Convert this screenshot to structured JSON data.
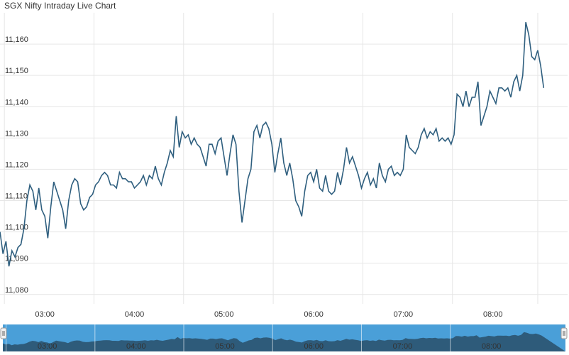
{
  "header": {
    "title": "SGX Nifty Intraday Live Chart"
  },
  "colors": {
    "line": "#2f5f7f",
    "grid": "#e6e6e6",
    "navigator_bg": "#4a9fd8",
    "navigator_area": "#2e5b7a"
  },
  "chart_data": {
    "type": "line",
    "title": "SGX Nifty Intraday Live Chart",
    "xlabel": "",
    "ylabel": "",
    "x_ticks": [
      "03:00",
      "04:00",
      "05:00",
      "06:00",
      "07:00",
      "08:00"
    ],
    "y_ticks": [
      "11,080",
      "11,090",
      "11,100",
      "11,110",
      "11,120",
      "11,130",
      "11,140",
      "11,150",
      "11,160"
    ],
    "y_values": [
      11080,
      11090,
      11100,
      11110,
      11120,
      11130,
      11140,
      11150,
      11160
    ],
    "ylim": [
      11077,
      11170
    ],
    "xlim": [
      "02:30",
      "08:50"
    ],
    "grid": true,
    "navigator_ticks": [
      "03:00",
      "04:00",
      "05:00",
      "06:00",
      "07:00",
      "08:00"
    ],
    "series": [
      {
        "values": [
          [
            "02:30",
            11100
          ],
          [
            "02:32",
            11093
          ],
          [
            "02:34",
            11097
          ],
          [
            "02:36",
            11089
          ],
          [
            "02:38",
            11094
          ],
          [
            "02:40",
            11092
          ],
          [
            "02:42",
            11095
          ],
          [
            "02:44",
            11096
          ],
          [
            "02:46",
            11101
          ],
          [
            "02:48",
            11110
          ],
          [
            "02:50",
            11115
          ],
          [
            "02:52",
            11113
          ],
          [
            "02:54",
            11107
          ],
          [
            "02:56",
            11114
          ],
          [
            "02:58",
            11107
          ],
          [
            "03:00",
            11105
          ],
          [
            "03:02",
            11098
          ],
          [
            "03:04",
            11108
          ],
          [
            "03:06",
            11116
          ],
          [
            "03:08",
            11113
          ],
          [
            "03:10",
            11110
          ],
          [
            "03:12",
            11107
          ],
          [
            "03:14",
            11101
          ],
          [
            "03:16",
            11110
          ],
          [
            "03:18",
            11115
          ],
          [
            "03:20",
            11117
          ],
          [
            "03:22",
            11116
          ],
          [
            "03:24",
            11109
          ],
          [
            "03:26",
            11107
          ],
          [
            "03:28",
            11108
          ],
          [
            "03:30",
            11111
          ],
          [
            "03:32",
            11112
          ],
          [
            "03:34",
            11115
          ],
          [
            "03:36",
            11116
          ],
          [
            "03:38",
            11118
          ],
          [
            "03:40",
            11119
          ],
          [
            "03:42",
            11118
          ],
          [
            "03:44",
            11115
          ],
          [
            "03:46",
            11115
          ],
          [
            "03:48",
            11114
          ],
          [
            "03:50",
            11119
          ],
          [
            "03:52",
            11117
          ],
          [
            "03:54",
            11117
          ],
          [
            "03:56",
            11116
          ],
          [
            "03:58",
            11116
          ],
          [
            "04:00",
            11114
          ],
          [
            "04:02",
            11115
          ],
          [
            "04:04",
            11116
          ],
          [
            "04:06",
            11118
          ],
          [
            "04:08",
            11115
          ],
          [
            "04:10",
            11118
          ],
          [
            "04:12",
            11117
          ],
          [
            "04:14",
            11121
          ],
          [
            "04:16",
            11117
          ],
          [
            "04:18",
            11115
          ],
          [
            "04:20",
            11119
          ],
          [
            "04:22",
            11122
          ],
          [
            "04:24",
            11126
          ],
          [
            "04:26",
            11124
          ],
          [
            "04:28",
            11137
          ],
          [
            "04:30",
            11127
          ],
          [
            "04:32",
            11132
          ],
          [
            "04:34",
            11130
          ],
          [
            "04:36",
            11131
          ],
          [
            "04:38",
            11128
          ],
          [
            "04:40",
            11130
          ],
          [
            "04:42",
            11128
          ],
          [
            "04:44",
            11127
          ],
          [
            "04:46",
            11124
          ],
          [
            "04:48",
            11121
          ],
          [
            "04:50",
            11128
          ],
          [
            "04:52",
            11128
          ],
          [
            "04:54",
            11125
          ],
          [
            "04:56",
            11129
          ],
          [
            "04:58",
            11130
          ],
          [
            "05:00",
            11124
          ],
          [
            "05:02",
            11118
          ],
          [
            "05:04",
            11125
          ],
          [
            "05:06",
            11131
          ],
          [
            "05:08",
            11128
          ],
          [
            "05:10",
            11113
          ],
          [
            "05:12",
            11103
          ],
          [
            "05:14",
            11110
          ],
          [
            "05:16",
            11117
          ],
          [
            "05:18",
            11120
          ],
          [
            "05:20",
            11132
          ],
          [
            "05:22",
            11134
          ],
          [
            "05:24",
            11130
          ],
          [
            "05:26",
            11134
          ],
          [
            "05:28",
            11135
          ],
          [
            "05:30",
            11133
          ],
          [
            "05:32",
            11128
          ],
          [
            "05:34",
            11119
          ],
          [
            "05:36",
            11125
          ],
          [
            "05:38",
            11130
          ],
          [
            "05:40",
            11122
          ],
          [
            "05:42",
            11118
          ],
          [
            "05:44",
            11122
          ],
          [
            "05:46",
            11117
          ],
          [
            "05:48",
            11110
          ],
          [
            "05:50",
            11108
          ],
          [
            "05:52",
            11105
          ],
          [
            "05:54",
            11113
          ],
          [
            "05:56",
            11118
          ],
          [
            "05:58",
            11119
          ],
          [
            "06:00",
            11116
          ],
          [
            "06:02",
            11120
          ],
          [
            "06:04",
            11114
          ],
          [
            "06:06",
            11113
          ],
          [
            "06:08",
            11118
          ],
          [
            "06:10",
            11113
          ],
          [
            "06:12",
            11112
          ],
          [
            "06:14",
            11113
          ],
          [
            "06:16",
            11119
          ],
          [
            "06:18",
            11115
          ],
          [
            "06:20",
            11120
          ],
          [
            "06:22",
            11127
          ],
          [
            "06:24",
            11122
          ],
          [
            "06:26",
            11124
          ],
          [
            "06:28",
            11121
          ],
          [
            "06:30",
            11118
          ],
          [
            "06:32",
            11114
          ],
          [
            "06:34",
            11117
          ],
          [
            "06:36",
            11119
          ],
          [
            "06:38",
            11115
          ],
          [
            "06:40",
            11117
          ],
          [
            "06:42",
            11114
          ],
          [
            "06:44",
            11122
          ],
          [
            "06:46",
            11118
          ],
          [
            "06:48",
            11116
          ],
          [
            "06:50",
            11120
          ],
          [
            "06:52",
            11121
          ],
          [
            "06:54",
            11118
          ],
          [
            "06:56",
            11119
          ],
          [
            "06:58",
            11118
          ],
          [
            "07:00",
            11120
          ],
          [
            "07:02",
            11131
          ],
          [
            "07:04",
            11127
          ],
          [
            "07:06",
            11126
          ],
          [
            "07:08",
            11125
          ],
          [
            "07:10",
            11127
          ],
          [
            "07:12",
            11131
          ],
          [
            "07:14",
            11133
          ],
          [
            "07:16",
            11130
          ],
          [
            "07:18",
            11132
          ],
          [
            "07:20",
            11131
          ],
          [
            "07:22",
            11133
          ],
          [
            "07:24",
            11129
          ],
          [
            "07:26",
            11130
          ],
          [
            "07:28",
            11129
          ],
          [
            "07:30",
            11130
          ],
          [
            "07:32",
            11128
          ],
          [
            "07:34",
            11131
          ],
          [
            "07:36",
            11144
          ],
          [
            "07:38",
            11143
          ],
          [
            "07:40",
            11140
          ],
          [
            "07:42",
            11145
          ],
          [
            "07:44",
            11140
          ],
          [
            "07:46",
            11143
          ],
          [
            "07:48",
            11143
          ],
          [
            "07:50",
            11148
          ],
          [
            "07:52",
            11134
          ],
          [
            "07:54",
            11137
          ],
          [
            "07:56",
            11140
          ],
          [
            "07:58",
            11145
          ],
          [
            "08:00",
            11143
          ],
          [
            "08:02",
            11141
          ],
          [
            "08:04",
            11146
          ],
          [
            "08:06",
            11146
          ],
          [
            "08:08",
            11145
          ],
          [
            "08:10",
            11146
          ],
          [
            "08:12",
            11143
          ],
          [
            "08:14",
            11148
          ],
          [
            "08:16",
            11150
          ],
          [
            "08:18",
            11145
          ],
          [
            "08:20",
            11150
          ],
          [
            "08:22",
            11167
          ],
          [
            "08:24",
            11163
          ],
          [
            "08:26",
            11156
          ],
          [
            "08:28",
            11155
          ],
          [
            "08:30",
            11158
          ],
          [
            "08:32",
            11153
          ],
          [
            "08:34",
            11146
          ]
        ]
      }
    ]
  }
}
